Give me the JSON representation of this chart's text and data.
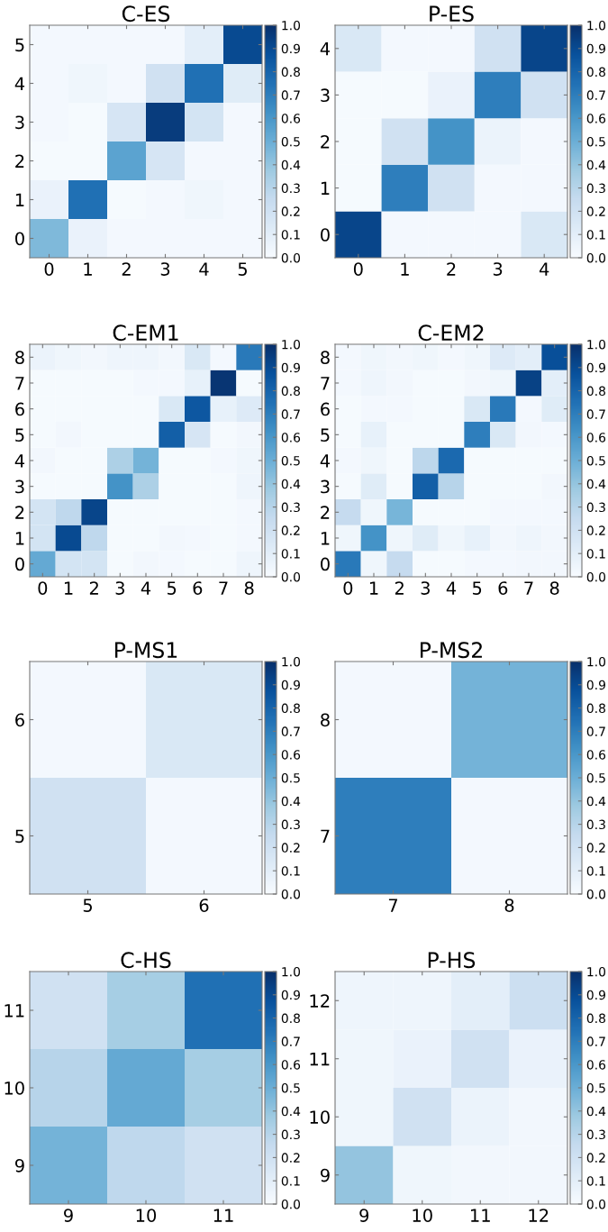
{
  "chart_data": [
    {
      "type": "heatmap",
      "title": "C-ES",
      "categories": [
        "0",
        "1",
        "2",
        "3",
        "4",
        "5"
      ],
      "y_categories": [
        "5",
        "4",
        "3",
        "2",
        "1",
        "0"
      ],
      "cells": [
        [
          0.02,
          0.02,
          0.02,
          0.02,
          0.1,
          0.9
        ],
        [
          0.02,
          0.04,
          0.02,
          0.2,
          0.75,
          0.12
        ],
        [
          0.02,
          0.01,
          0.17,
          0.95,
          0.18,
          0.02
        ],
        [
          0.01,
          0.01,
          0.55,
          0.17,
          0.02,
          0.02
        ],
        [
          0.07,
          0.75,
          0.01,
          0.02,
          0.04,
          0.02
        ],
        [
          0.45,
          0.07,
          0.02,
          0.02,
          0.02,
          0.02
        ]
      ],
      "clim": [
        0,
        1
      ],
      "cticks": [
        {
          "value": 0,
          "label": "0.0"
        },
        {
          "value": 0.1,
          "label": "0.1"
        },
        {
          "value": 0.2,
          "label": "0.2"
        },
        {
          "value": 0.3,
          "label": "0.3"
        },
        {
          "value": 0.4,
          "label": "0.4"
        },
        {
          "value": 0.5,
          "label": "0.5"
        },
        {
          "value": 0.6,
          "label": "0.6"
        },
        {
          "value": 0.7,
          "label": "0.7"
        },
        {
          "value": 0.8,
          "label": "0.8"
        },
        {
          "value": 0.9,
          "label": "0.9"
        },
        {
          "value": 1,
          "label": "1.0"
        }
      ]
    },
    {
      "type": "heatmap",
      "title": "P-ES",
      "categories": [
        "0",
        "1",
        "2",
        "3",
        "4"
      ],
      "y_categories": [
        "4",
        "3",
        "2",
        "1",
        "0"
      ],
      "cells": [
        [
          0.15,
          0.02,
          0.02,
          0.2,
          0.92
        ],
        [
          0.01,
          0.01,
          0.07,
          0.7,
          0.2
        ],
        [
          0.01,
          0.2,
          0.62,
          0.06,
          0.02
        ],
        [
          0.01,
          0.7,
          0.2,
          0.02,
          0.02
        ],
        [
          0.92,
          0.02,
          0.02,
          0.02,
          0.15
        ]
      ],
      "clim": [
        0,
        1
      ],
      "cticks": [
        {
          "value": 0,
          "label": "0.0"
        },
        {
          "value": 0.1,
          "label": "0.1"
        },
        {
          "value": 0.2,
          "label": "0.2"
        },
        {
          "value": 0.3,
          "label": "0.3"
        },
        {
          "value": 0.4,
          "label": "0.4"
        },
        {
          "value": 0.5,
          "label": "0.5"
        },
        {
          "value": 0.6,
          "label": "0.6"
        },
        {
          "value": 0.7,
          "label": "0.7"
        },
        {
          "value": 0.8,
          "label": "0.8"
        },
        {
          "value": 0.9,
          "label": "0.9"
        },
        {
          "value": 1,
          "label": "1.0"
        }
      ]
    },
    {
      "type": "heatmap",
      "title": "C-EM1",
      "categories": [
        "0",
        "1",
        "2",
        "3",
        "4",
        "5",
        "6",
        "7",
        "8"
      ],
      "y_categories": [
        "8",
        "7",
        "6",
        "5",
        "4",
        "3",
        "2",
        "1",
        "0"
      ],
      "cells": [
        [
          0.06,
          0.04,
          0.03,
          0.05,
          0.05,
          0.03,
          0.15,
          0.02,
          0.72
        ],
        [
          0.01,
          0.01,
          0.01,
          0.01,
          0.02,
          0.02,
          0.08,
          0.98,
          0.01
        ],
        [
          0.01,
          0.01,
          0.01,
          0.01,
          0.01,
          0.15,
          0.85,
          0.08,
          0.13
        ],
        [
          0.01,
          0.03,
          0.01,
          0.01,
          0.01,
          0.82,
          0.17,
          0.01,
          0.03
        ],
        [
          0.03,
          0.01,
          0.01,
          0.33,
          0.48,
          0.01,
          0.01,
          0.02,
          0.04
        ],
        [
          0.01,
          0.01,
          0.01,
          0.62,
          0.33,
          0.01,
          0.01,
          0.01,
          0.05
        ],
        [
          0.18,
          0.27,
          0.92,
          0.01,
          0.01,
          0.01,
          0.01,
          0.01,
          0.02
        ],
        [
          0.18,
          0.9,
          0.27,
          0.01,
          0.01,
          0.03,
          0.02,
          0.01,
          0.02
        ],
        [
          0.52,
          0.18,
          0.18,
          0.01,
          0.03,
          0.02,
          0.01,
          0.01,
          0.05
        ]
      ],
      "clim": [
        0,
        1
      ],
      "cticks": [
        {
          "value": 0,
          "label": "0.0"
        },
        {
          "value": 0.1,
          "label": "0.1"
        },
        {
          "value": 0.2,
          "label": "0.2"
        },
        {
          "value": 0.3,
          "label": "0.3"
        },
        {
          "value": 0.4,
          "label": "0.4"
        },
        {
          "value": 0.5,
          "label": "0.5"
        },
        {
          "value": 0.6,
          "label": "0.6"
        },
        {
          "value": 0.7,
          "label": "0.7"
        },
        {
          "value": 0.8,
          "label": "0.8"
        },
        {
          "value": 0.9,
          "label": "0.9"
        },
        {
          "value": 1,
          "label": "1.0"
        }
      ]
    },
    {
      "type": "heatmap",
      "title": "C-EM2",
      "categories": [
        "0",
        "1",
        "2",
        "3",
        "4",
        "5",
        "6",
        "7",
        "8"
      ],
      "y_categories": [
        "8",
        "7",
        "6",
        "5",
        "4",
        "3",
        "2",
        "1",
        "0"
      ],
      "cells": [
        [
          0.02,
          0.04,
          0.03,
          0.04,
          0.02,
          0.04,
          0.13,
          0.1,
          0.88
        ],
        [
          0.02,
          0.05,
          0.03,
          0.01,
          0.01,
          0.03,
          0.04,
          0.93,
          0.1
        ],
        [
          0.01,
          0.02,
          0.02,
          0.01,
          0.01,
          0.15,
          0.72,
          0.02,
          0.12
        ],
        [
          0.01,
          0.08,
          0.01,
          0.01,
          0.01,
          0.7,
          0.15,
          0.03,
          0.02
        ],
        [
          0.02,
          0.04,
          0.01,
          0.28,
          0.78,
          0.01,
          0.01,
          0.01,
          0.01
        ],
        [
          0.01,
          0.12,
          0.01,
          0.82,
          0.3,
          0.01,
          0.01,
          0.01,
          0.03
        ],
        [
          0.25,
          0.04,
          0.47,
          0.01,
          0.01,
          0.01,
          0.02,
          0.02,
          0.02
        ],
        [
          0.04,
          0.62,
          0.04,
          0.12,
          0.04,
          0.08,
          0.03,
          0.05,
          0.03
        ],
        [
          0.72,
          0.04,
          0.25,
          0.01,
          0.01,
          0.02,
          0.02,
          0.03,
          0.03
        ]
      ],
      "clim": [
        0,
        1
      ],
      "cticks": [
        {
          "value": 0,
          "label": "0.0"
        },
        {
          "value": 0.1,
          "label": "0.1"
        },
        {
          "value": 0.2,
          "label": "0.2"
        },
        {
          "value": 0.3,
          "label": "0.3"
        },
        {
          "value": 0.4,
          "label": "0.4"
        },
        {
          "value": 0.5,
          "label": "0.5"
        },
        {
          "value": 0.6,
          "label": "0.6"
        },
        {
          "value": 0.7,
          "label": "0.7"
        },
        {
          "value": 0.8,
          "label": "0.8"
        },
        {
          "value": 0.9,
          "label": "0.9"
        },
        {
          "value": 1,
          "label": "1.0"
        }
      ]
    },
    {
      "type": "heatmap",
      "title": "P-MS1",
      "categories": [
        "5",
        "6"
      ],
      "y_categories": [
        "6",
        "5"
      ],
      "cells": [
        [
          0.02,
          0.15
        ],
        [
          0.2,
          0.02
        ]
      ],
      "clim": [
        0,
        1
      ],
      "cticks": [
        {
          "value": 0,
          "label": "0.0"
        },
        {
          "value": 0.1,
          "label": "0.1"
        },
        {
          "value": 0.2,
          "label": "0.2"
        },
        {
          "value": 0.3,
          "label": "0.3"
        },
        {
          "value": 0.4,
          "label": "0.4"
        },
        {
          "value": 0.5,
          "label": "0.5"
        },
        {
          "value": 0.6,
          "label": "0.6"
        },
        {
          "value": 0.7,
          "label": "0.7"
        },
        {
          "value": 0.8,
          "label": "0.8"
        },
        {
          "value": 0.9,
          "label": "0.9"
        },
        {
          "value": 1,
          "label": "1.0"
        }
      ]
    },
    {
      "type": "heatmap",
      "title": "P-MS2",
      "categories": [
        "7",
        "8"
      ],
      "y_categories": [
        "8",
        "7"
      ],
      "cells": [
        [
          0.02,
          0.48
        ],
        [
          0.7,
          0.02
        ]
      ],
      "clim": [
        0,
        1
      ],
      "cticks": [
        {
          "value": 0,
          "label": "0.0"
        },
        {
          "value": 0.1,
          "label": "0.1"
        },
        {
          "value": 0.2,
          "label": "0.2"
        },
        {
          "value": 0.3,
          "label": "0.3"
        },
        {
          "value": 0.4,
          "label": "0.4"
        },
        {
          "value": 0.5,
          "label": "0.5"
        },
        {
          "value": 0.6,
          "label": "0.6"
        },
        {
          "value": 0.7,
          "label": "0.7"
        },
        {
          "value": 0.8,
          "label": "0.8"
        },
        {
          "value": 0.9,
          "label": "0.9"
        },
        {
          "value": 1,
          "label": "1.0"
        }
      ]
    },
    {
      "type": "heatmap",
      "title": "C-HS",
      "categories": [
        "9",
        "10",
        "11"
      ],
      "y_categories": [
        "11",
        "10",
        "9"
      ],
      "cells": [
        [
          0.2,
          0.35,
          0.75
        ],
        [
          0.3,
          0.52,
          0.35
        ],
        [
          0.48,
          0.27,
          0.2
        ]
      ],
      "clim": [
        0,
        1
      ],
      "cticks": [
        {
          "value": 0,
          "label": "0.0"
        },
        {
          "value": 0.1,
          "label": "0.1"
        },
        {
          "value": 0.2,
          "label": "0.2"
        },
        {
          "value": 0.3,
          "label": "0.3"
        },
        {
          "value": 0.4,
          "label": "0.4"
        },
        {
          "value": 0.5,
          "label": "0.5"
        },
        {
          "value": 0.6,
          "label": "0.6"
        },
        {
          "value": 0.7,
          "label": "0.7"
        },
        {
          "value": 0.8,
          "label": "0.8"
        },
        {
          "value": 0.9,
          "label": "0.9"
        },
        {
          "value": 1,
          "label": "1.0"
        }
      ]
    },
    {
      "type": "heatmap",
      "title": "P-HS",
      "categories": [
        "9",
        "10",
        "11",
        "12"
      ],
      "y_categories": [
        "12",
        "11",
        "10",
        "9"
      ],
      "cells": [
        [
          0.05,
          0.05,
          0.1,
          0.22
        ],
        [
          0.04,
          0.07,
          0.2,
          0.07
        ],
        [
          0.04,
          0.2,
          0.06,
          0.03
        ],
        [
          0.4,
          0.04,
          0.03,
          0.03
        ]
      ],
      "clim": [
        0,
        1
      ],
      "cticks": [
        {
          "value": 0,
          "label": "0.0"
        },
        {
          "value": 0.1,
          "label": "0.1"
        },
        {
          "value": 0.2,
          "label": "0.2"
        },
        {
          "value": 0.3,
          "label": "0.3"
        },
        {
          "value": 0.4,
          "label": "0.4"
        },
        {
          "value": 0.5,
          "label": "0.5"
        },
        {
          "value": 0.6,
          "label": "0.6"
        },
        {
          "value": 0.7,
          "label": "0.7"
        },
        {
          "value": 0.8,
          "label": "0.8"
        },
        {
          "value": 0.9,
          "label": "0.9"
        },
        {
          "value": 1,
          "label": "1.0"
        }
      ]
    }
  ]
}
